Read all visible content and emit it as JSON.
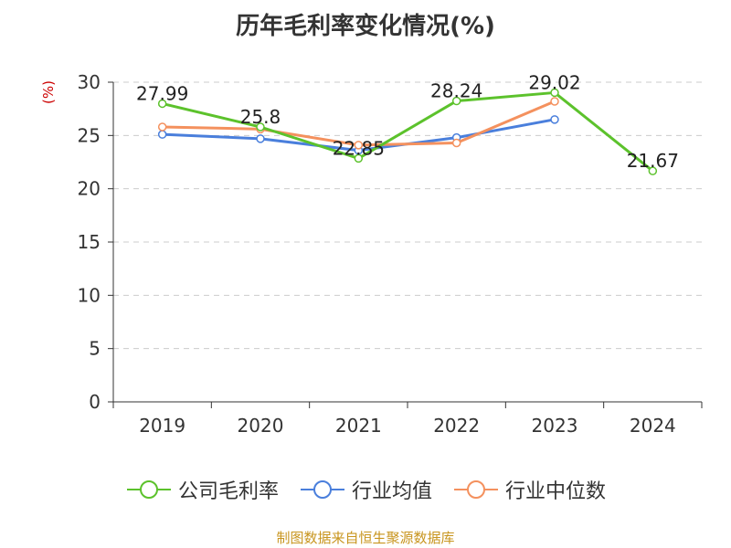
{
  "chart_data": {
    "type": "line",
    "title": "历年毛利率变化情况(%)",
    "ylabel": "(%)",
    "xlabel": "",
    "categories": [
      "2019",
      "2020",
      "2021",
      "2022",
      "2023",
      "2024"
    ],
    "ylim": [
      0,
      30
    ],
    "yticks": [
      0,
      5,
      10,
      15,
      20,
      25,
      30
    ],
    "grid": true,
    "legend_position": "bottom",
    "series": [
      {
        "name": "公司毛利率",
        "color": "#5cc22c",
        "values": [
          27.99,
          25.8,
          22.85,
          28.24,
          29.02,
          21.67
        ],
        "labels": [
          "27.99",
          "25.8",
          "22.85",
          "28.24",
          "29.02",
          "21.67"
        ]
      },
      {
        "name": "行业均值",
        "color": "#4a7fdc",
        "values": [
          25.1,
          24.7,
          23.6,
          24.8,
          26.5,
          null
        ],
        "labels": []
      },
      {
        "name": "行业中位数",
        "color": "#f4915e",
        "values": [
          25.8,
          25.6,
          24.1,
          24.3,
          28.2,
          null
        ],
        "labels": []
      }
    ]
  },
  "footer": "制图数据来自恒生聚源数据库"
}
